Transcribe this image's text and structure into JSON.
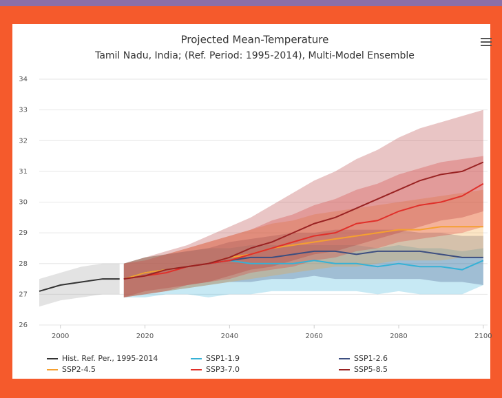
{
  "chart_data": {
    "type": "line",
    "title": "Projected Mean-Temperature",
    "subtitle": "Tamil Nadu, India; (Ref. Period: 1995-2014), Multi-Model Ensemble",
    "xlim": [
      1995,
      2101
    ],
    "xticks": [
      2000,
      2020,
      2040,
      2060,
      2080,
      2100
    ],
    "ylim": [
      26,
      34
    ],
    "yticks": [
      26,
      27,
      28,
      29,
      30,
      31,
      32,
      33,
      34
    ],
    "grid": true,
    "series": [
      {
        "name": "Hist. Ref. Per., 1995-2014",
        "color": "#333333",
        "band_color": "#9a9a9a",
        "x": [
          1995,
          2000,
          2005,
          2010,
          2014
        ],
        "values": [
          27.1,
          27.3,
          27.4,
          27.5,
          27.5
        ],
        "lower": [
          26.6,
          26.8,
          26.9,
          27.0,
          27.0
        ],
        "upper": [
          27.5,
          27.7,
          27.9,
          28.0,
          28.0
        ]
      },
      {
        "name": "SSP1-1.9",
        "color": "#35b1d6",
        "band_color": "#35b1d6",
        "x": [
          2015,
          2020,
          2025,
          2030,
          2035,
          2040,
          2045,
          2050,
          2055,
          2060,
          2065,
          2070,
          2075,
          2080,
          2085,
          2090,
          2095,
          2100
        ],
        "values": [
          27.5,
          27.7,
          27.8,
          27.9,
          28.0,
          28.1,
          28.0,
          28.0,
          28.0,
          28.1,
          28.0,
          28.0,
          27.9,
          28.0,
          27.9,
          27.9,
          27.8,
          28.1
        ],
        "lower": [
          26.9,
          26.9,
          27.0,
          27.0,
          26.9,
          27.0,
          27.0,
          27.1,
          27.1,
          27.1,
          27.1,
          27.1,
          27.0,
          27.1,
          27.0,
          27.0,
          27.0,
          27.3
        ],
        "upper": [
          28.0,
          28.2,
          28.3,
          28.4,
          28.5,
          28.5,
          28.6,
          28.6,
          28.6,
          28.6,
          28.6,
          28.6,
          28.5,
          28.6,
          28.5,
          28.5,
          28.4,
          28.5
        ]
      },
      {
        "name": "SSP1-2.6",
        "color": "#3c4e80",
        "band_color": "#3c4e80",
        "x": [
          2015,
          2020,
          2025,
          2030,
          2035,
          2040,
          2045,
          2050,
          2055,
          2060,
          2065,
          2070,
          2075,
          2080,
          2085,
          2090,
          2095,
          2100
        ],
        "values": [
          27.5,
          27.7,
          27.8,
          27.9,
          28.0,
          28.1,
          28.2,
          28.2,
          28.3,
          28.4,
          28.4,
          28.3,
          28.4,
          28.4,
          28.4,
          28.3,
          28.2,
          28.2
        ],
        "lower": [
          26.9,
          27.0,
          27.1,
          27.2,
          27.3,
          27.4,
          27.4,
          27.5,
          27.5,
          27.6,
          27.5,
          27.5,
          27.5,
          27.5,
          27.5,
          27.4,
          27.4,
          27.3
        ],
        "upper": [
          28.0,
          28.2,
          28.3,
          28.4,
          28.5,
          28.7,
          28.8,
          28.9,
          29.0,
          29.0,
          29.1,
          29.1,
          29.1,
          29.1,
          29.0,
          29.0,
          28.9,
          28.9
        ]
      },
      {
        "name": "SSP2-4.5",
        "color": "#f5a030",
        "band_color": "#f5a030",
        "x": [
          2015,
          2020,
          2025,
          2030,
          2035,
          2040,
          2045,
          2050,
          2055,
          2060,
          2065,
          2070,
          2075,
          2080,
          2085,
          2090,
          2095,
          2100
        ],
        "values": [
          27.5,
          27.7,
          27.8,
          27.9,
          28.0,
          28.2,
          28.3,
          28.5,
          28.6,
          28.7,
          28.8,
          28.9,
          29.0,
          29.1,
          29.1,
          29.2,
          29.2,
          29.2
        ],
        "lower": [
          26.9,
          27.0,
          27.1,
          27.2,
          27.3,
          27.4,
          27.5,
          27.6,
          27.7,
          27.8,
          27.9,
          27.9,
          28.0,
          28.1,
          28.1,
          28.1,
          28.2,
          28.2
        ],
        "upper": [
          28.0,
          28.2,
          28.3,
          28.5,
          28.7,
          28.9,
          29.1,
          29.3,
          29.4,
          29.6,
          29.7,
          29.8,
          29.9,
          30.0,
          30.1,
          30.2,
          30.3,
          30.4
        ]
      },
      {
        "name": "SSP3-7.0",
        "color": "#e0302a",
        "band_color": "#e0302a",
        "x": [
          2015,
          2020,
          2025,
          2030,
          2035,
          2040,
          2045,
          2050,
          2055,
          2060,
          2065,
          2070,
          2075,
          2080,
          2085,
          2090,
          2095,
          2100
        ],
        "values": [
          27.5,
          27.6,
          27.7,
          27.9,
          28.0,
          28.1,
          28.3,
          28.5,
          28.7,
          28.9,
          29.0,
          29.3,
          29.4,
          29.7,
          29.9,
          30.0,
          30.2,
          30.6
        ],
        "lower": [
          26.9,
          27.0,
          27.1,
          27.3,
          27.4,
          27.5,
          27.7,
          27.8,
          27.9,
          28.1,
          28.2,
          28.4,
          28.5,
          28.7,
          28.8,
          28.9,
          29.0,
          29.2
        ],
        "upper": [
          28.0,
          28.1,
          28.3,
          28.5,
          28.7,
          28.9,
          29.1,
          29.4,
          29.6,
          29.9,
          30.1,
          30.4,
          30.6,
          30.9,
          31.1,
          31.3,
          31.4,
          31.5
        ]
      },
      {
        "name": "SSP5-8.5",
        "color": "#992222",
        "band_color": "#b03030",
        "x": [
          2015,
          2020,
          2025,
          2030,
          2035,
          2040,
          2045,
          2050,
          2055,
          2060,
          2065,
          2070,
          2075,
          2080,
          2085,
          2090,
          2095,
          2100
        ],
        "values": [
          27.5,
          27.6,
          27.8,
          27.9,
          28.0,
          28.2,
          28.5,
          28.7,
          29.0,
          29.3,
          29.5,
          29.8,
          30.1,
          30.4,
          30.7,
          30.9,
          31.0,
          31.3
        ],
        "lower": [
          26.9,
          27.1,
          27.2,
          27.3,
          27.4,
          27.6,
          27.8,
          27.9,
          28.1,
          28.3,
          28.4,
          28.6,
          28.8,
          29.0,
          29.2,
          29.4,
          29.5,
          29.7
        ],
        "upper": [
          28.0,
          28.2,
          28.4,
          28.6,
          28.9,
          29.2,
          29.5,
          29.9,
          30.3,
          30.7,
          31.0,
          31.4,
          31.7,
          32.1,
          32.4,
          32.6,
          32.8,
          33.0
        ]
      }
    ]
  }
}
